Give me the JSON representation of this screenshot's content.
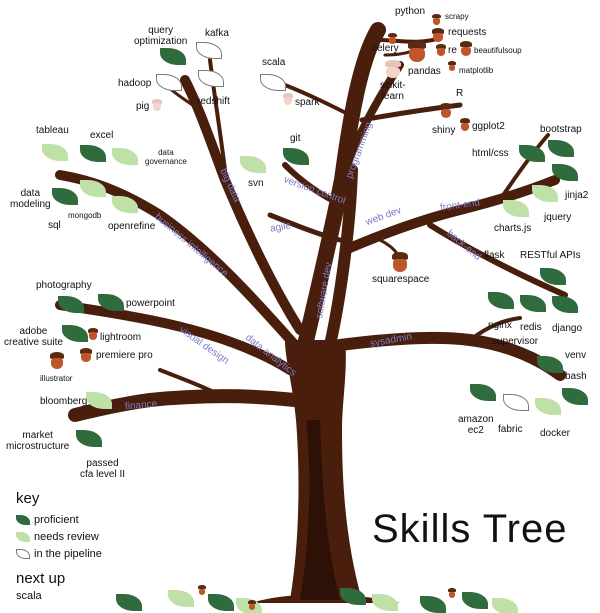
{
  "title": "Skills Tree",
  "key": {
    "heading": "key",
    "proficient": "proficient",
    "needs_review": "needs review",
    "in_pipeline": "in the pipeline"
  },
  "next_up": {
    "heading": "next up",
    "value": "scala"
  },
  "branches": {
    "programming": "programming",
    "software_dev": "software dev",
    "web_dev": "web dev",
    "front_end": "front-end",
    "back_end": "back-end",
    "version_control": "version control",
    "agile": "agile",
    "sysadmin": "sysadmin",
    "big_data": "big data",
    "business_intelligence": "business intelligence",
    "data_analytics": "data analytics",
    "visual_design": "visual design",
    "finance": "finance"
  },
  "skills": {
    "python": "python",
    "scrapy": "scrapy",
    "requests": "requests",
    "celery": "celery",
    "re": "re",
    "beautifulsoup": "beautifulsoup",
    "pandas": "pandas",
    "matplotlib": "matplotlib",
    "scikit_learn": "scikit-\nlearn",
    "r": "R",
    "shiny": "shiny",
    "ggplot2": "ggplot2",
    "query_optimization": "query\noptimization",
    "kafka": "kafka",
    "hadoop": "hadoop",
    "pig": "pig",
    "redshift": "redshift",
    "scala": "scala",
    "spark": "spark",
    "git": "git",
    "svn": "svn",
    "tableau": "tableau",
    "excel": "excel",
    "data_governance": "data\ngovernance",
    "data_modeling": "data\nmodeling",
    "sql": "sql",
    "mongodb": "mongodb",
    "openrefine": "openrefine",
    "bootstrap": "bootstrap",
    "html_css": "html/css",
    "jinja2": "jinja2",
    "jquery": "jquery",
    "charts_js": "charts.js",
    "squarespace": "squarespace",
    "flask": "flask",
    "restful_apis": "RESTful APIs",
    "nginx": "nginx",
    "redis": "redis",
    "django": "django",
    "supervisor": "supervisor",
    "venv": "venv",
    "bash": "bash",
    "amazon_ec2": "amazon\nec2",
    "fabric": "fabric",
    "docker": "docker",
    "photography": "photography",
    "powerpoint": "powerpoint",
    "adobe_creative_suite": "adobe\ncreative suite",
    "lightroom": "lightroom",
    "premiere_pro": "premiere pro",
    "illustrator": "illustrator",
    "bloomberg": "bloomberg",
    "market_microstructure": "market\nmicrostructure",
    "passed_cfa": "passed\ncfa level II"
  },
  "colors": {
    "trunk": "#4a1e0c",
    "trunk_shadow": "#2e1106",
    "proficient": "#2f6b3c",
    "needs_review": "#bfe0a6",
    "acorn": "#c0552a",
    "branch_label": "#7c7cc8"
  }
}
